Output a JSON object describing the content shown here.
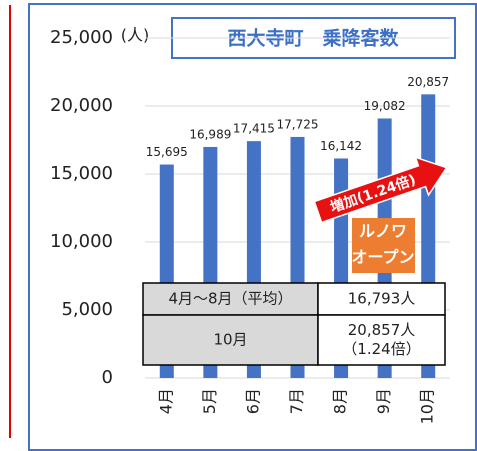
{
  "chart_data": {
    "type": "bar",
    "title": "西大寺町　乗降客数",
    "y_unit": "(人)",
    "categories": [
      "4月",
      "5月",
      "6月",
      "7月",
      "8月",
      "9月",
      "10月"
    ],
    "values": [
      15695,
      16989,
      17415,
      17725,
      16142,
      19082,
      20857
    ],
    "value_labels": [
      "15,695",
      "16,989",
      "17,415",
      "17,725",
      "16,142",
      "19,082",
      "20,857"
    ],
    "color": "#4472c4",
    "ylim": [
      0,
      25000
    ],
    "yticks": [
      0,
      {
        "value": 5000,
        "label": "5,000"
      },
      {
        "value": 10000,
        "label": "10,000"
      },
      {
        "value": 15000,
        "label": "15,000"
      },
      {
        "value": 20000,
        "label": "20,000"
      },
      {
        "value": 25000,
        "label": "25,000"
      }
    ],
    "grid": true,
    "arrow_text": "増加(1.24倍)",
    "box_lines": [
      "ルノワ",
      "オープン"
    ],
    "table": {
      "rows": [
        [
          [
            "4月～8月（平均）"
          ],
          [
            "16,793人"
          ]
        ],
        [
          [
            "10月"
          ],
          [
            "20,857人",
            "（1.24倍）"
          ]
        ]
      ]
    }
  }
}
